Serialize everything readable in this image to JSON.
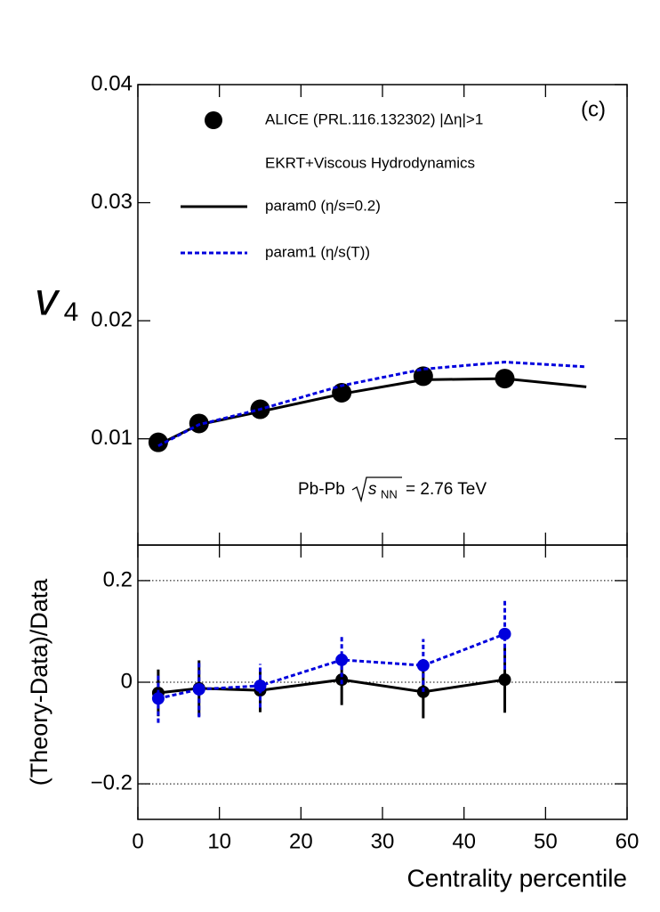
{
  "chart_data": [
    {
      "type": "line",
      "ylabel": "v",
      "ylabel_sub": "4",
      "panel_label": "(c)",
      "model_label": "EKRT+Viscous Hydrodynamics",
      "energy_label": {
        "prefix": "Pb-Pb",
        "var": "s",
        "sub": "NN",
        "suffix": "= 2.76 TeV"
      },
      "xlim": [
        0,
        60
      ],
      "ylim": [
        0.001,
        0.04
      ],
      "yticks": [
        0.01,
        0.02,
        0.03,
        0.04
      ],
      "series": [
        {
          "name": "ALICE (PRL.116.132302) |Δη|>1",
          "color": "#000000",
          "marker": true,
          "x": [
            2.5,
            7.5,
            15,
            25,
            35,
            45
          ],
          "values": [
            0.0097,
            0.0113,
            0.0125,
            0.0139,
            0.0153,
            0.0151
          ],
          "errors": [
            0.0003,
            0.0003,
            0.0003,
            0.0003,
            0.0004,
            0.0008
          ]
        },
        {
          "name": "param0 (η/s=0.2)",
          "color": "#000000",
          "dash": "solid",
          "x": [
            2.5,
            7.5,
            15,
            25,
            35,
            45,
            55
          ],
          "values": [
            0.0095,
            0.0112,
            0.0123,
            0.0138,
            0.015,
            0.0151,
            0.0144
          ]
        },
        {
          "name": "param1 (η/s(T))",
          "color": "#0000dd",
          "dash": "dotted",
          "x": [
            2.5,
            7.5,
            15,
            25,
            35,
            45,
            55
          ],
          "values": [
            0.0094,
            0.0112,
            0.0125,
            0.0145,
            0.0159,
            0.0165,
            0.0161
          ]
        }
      ]
    },
    {
      "type": "line",
      "xlabel": "Centrality percentile",
      "ylabel": "(Theory-Data)/Data",
      "xlim": [
        0,
        60
      ],
      "xticks": [
        0,
        10,
        20,
        30,
        40,
        50,
        60
      ],
      "ylim": [
        -0.27,
        0.27
      ],
      "yticks": [
        {
          "value": -0.2,
          "label": "−0.2"
        },
        0,
        0.2
      ],
      "grid": true,
      "series": [
        {
          "color": "#000000",
          "dash": "solid",
          "marker": true,
          "x": [
            2.5,
            7.5,
            15,
            25,
            35,
            45
          ],
          "values": [
            -0.021,
            -0.012,
            -0.016,
            0.005,
            -0.019,
            0.005
          ],
          "errors": [
            0.046,
            0.055,
            0.043,
            0.05,
            0.052,
            0.065
          ]
        },
        {
          "color": "#0000dd",
          "dash": "dotted",
          "marker": true,
          "x": [
            2.5,
            7.5,
            15,
            25,
            35,
            45
          ],
          "values": [
            -0.032,
            -0.014,
            -0.007,
            0.044,
            0.033,
            0.095
          ],
          "errors": [
            0.048,
            0.055,
            0.043,
            0.048,
            0.052,
            0.07
          ]
        }
      ]
    }
  ]
}
